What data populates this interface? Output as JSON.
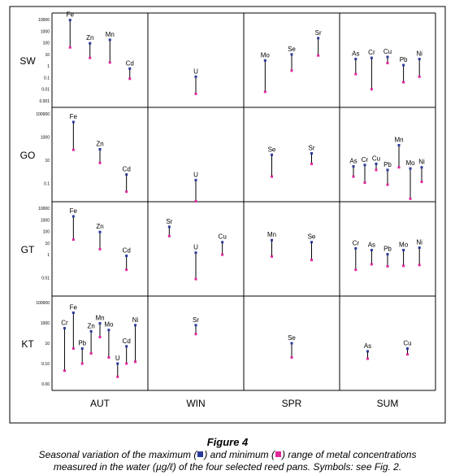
{
  "caption": {
    "title": "Figure 4",
    "line1_pre": "Seasonal variation of the maximum (",
    "line1_mid": ") and minimum (",
    "line1_post": ") range of metal concentrations",
    "line2": "measured in the water (µg/ℓ) of the four selected reed pans. Symbols: see Fig. 2."
  },
  "colors": {
    "max_marker": "#2b3a9a",
    "min_marker": "#e0279b",
    "line": "#000000"
  },
  "chart_data": {
    "type": "range",
    "columns": [
      "AUT",
      "WIN",
      "SPR",
      "SUM"
    ],
    "rows": [
      {
        "label": "SW",
        "ticks": [
          "10000",
          "1000",
          "100",
          "10",
          "1",
          "0.1",
          "0.01",
          "0.001"
        ],
        "ymin": 0.001,
        "ymax": 10000,
        "series": [
          {
            "name": "Fe",
            "col": 0,
            "max": 9000,
            "min": 40
          },
          {
            "name": "Zn",
            "col": 0,
            "max": 90,
            "min": 5
          },
          {
            "name": "Mn",
            "col": 0,
            "max": 180,
            "min": 2
          },
          {
            "name": "Cd",
            "col": 0,
            "max": 0.6,
            "min": 0.08
          },
          {
            "name": "U",
            "col": 1,
            "max": 0.12,
            "min": 0.004
          },
          {
            "name": "Mo",
            "col": 2,
            "max": 3,
            "min": 0.006
          },
          {
            "name": "Se",
            "col": 2,
            "max": 10,
            "min": 0.4
          },
          {
            "name": "Sr",
            "col": 2,
            "max": 250,
            "min": 8
          },
          {
            "name": "As",
            "col": 3,
            "max": 4,
            "min": 0.2
          },
          {
            "name": "Cr",
            "col": 3,
            "max": 5,
            "min": 0.01
          },
          {
            "name": "Cu",
            "col": 3,
            "max": 6,
            "min": 1.8
          },
          {
            "name": "Pb",
            "col": 3,
            "max": 1.2,
            "min": 0.04
          },
          {
            "name": "Ni",
            "col": 3,
            "max": 4,
            "min": 0.12
          }
        ]
      },
      {
        "label": "GO",
        "ticks": [
          "100000",
          "1000",
          "10",
          "0.1"
        ],
        "ymin": 0.01,
        "ymax": 100000,
        "series": [
          {
            "name": "Fe",
            "col": 0,
            "max": 20000,
            "min": 80
          },
          {
            "name": "Zn",
            "col": 0,
            "max": 90,
            "min": 6
          },
          {
            "name": "Cd",
            "col": 0,
            "max": 0.6,
            "min": 0.02
          },
          {
            "name": "U",
            "col": 1,
            "max": 0.2,
            "min": 0.003
          },
          {
            "name": "Se",
            "col": 2,
            "max": 30,
            "min": 0.4
          },
          {
            "name": "Sr",
            "col": 2,
            "max": 40,
            "min": 5
          },
          {
            "name": "As",
            "col": 3,
            "max": 3,
            "min": 0.4
          },
          {
            "name": "Cr",
            "col": 3,
            "max": 4,
            "min": 0.12
          },
          {
            "name": "Cu",
            "col": 3,
            "max": 5,
            "min": 1.5
          },
          {
            "name": "Pb",
            "col": 3,
            "max": 1.5,
            "min": 0.08
          },
          {
            "name": "Mn",
            "col": 3,
            "max": 200,
            "min": 2.5
          },
          {
            "name": "Mo",
            "col": 3,
            "max": 2,
            "min": 0.005
          },
          {
            "name": "Ni",
            "col": 3,
            "max": 2.5,
            "min": 0.14
          }
        ]
      },
      {
        "label": "GT",
        "ticks": [
          "10000",
          "1000",
          "100",
          "10",
          "1",
          "0.01"
        ],
        "ymin": 0.001,
        "ymax": 10000,
        "series": [
          {
            "name": "Fe",
            "col": 0,
            "max": 2000,
            "min": 20
          },
          {
            "name": "Zn",
            "col": 0,
            "max": 90,
            "min": 3
          },
          {
            "name": "Cd",
            "col": 0,
            "max": 0.8,
            "min": 0.05
          },
          {
            "name": "Sr",
            "col": 1,
            "max": 250,
            "min": 40
          },
          {
            "name": "U",
            "col": 1,
            "max": 1.5,
            "min": 0.008
          },
          {
            "name": "Cu",
            "col": 1,
            "max": 12,
            "min": 1
          },
          {
            "name": "Mn",
            "col": 2,
            "max": 18,
            "min": 0.7
          },
          {
            "name": "Se",
            "col": 2,
            "max": 12,
            "min": 0.35
          },
          {
            "name": "Cr",
            "col": 3,
            "max": 3.5,
            "min": 0.05
          },
          {
            "name": "As",
            "col": 3,
            "max": 2.5,
            "min": 0.15
          },
          {
            "name": "Pb",
            "col": 3,
            "max": 1.1,
            "min": 0.1
          },
          {
            "name": "Mo",
            "col": 3,
            "max": 2.5,
            "min": 0.11
          },
          {
            "name": "Ni",
            "col": 3,
            "max": 4,
            "min": 0.13
          }
        ]
      },
      {
        "label": "KT",
        "ticks": [
          "100000",
          "1000",
          "10",
          "0.10",
          "0.00"
        ],
        "ymin": 0.001,
        "ymax": 100000,
        "series": [
          {
            "name": "Cr",
            "col": 0,
            "max": 300,
            "min": 0.02
          },
          {
            "name": "Fe",
            "col": 0,
            "max": 10000,
            "min": 3
          },
          {
            "name": "Pb",
            "col": 0,
            "max": 3,
            "min": 0.1
          },
          {
            "name": "Zn",
            "col": 0,
            "max": 150,
            "min": 1
          },
          {
            "name": "Mn",
            "col": 0,
            "max": 900,
            "min": 40
          },
          {
            "name": "Mo",
            "col": 0,
            "max": 200,
            "min": 0.4
          },
          {
            "name": "U",
            "col": 0,
            "max": 0.1,
            "min": 0.005
          },
          {
            "name": "Cd",
            "col": 0,
            "max": 5,
            "min": 0.1
          },
          {
            "name": "Ni",
            "col": 0,
            "max": 600,
            "min": 0.15
          },
          {
            "name": "Sr",
            "col": 1,
            "max": 600,
            "min": 80
          },
          {
            "name": "Se",
            "col": 2,
            "max": 10,
            "min": 0.4
          },
          {
            "name": "As",
            "col": 3,
            "max": 1.6,
            "min": 0.3
          },
          {
            "name": "Cu",
            "col": 3,
            "max": 3,
            "min": 0.8
          }
        ]
      }
    ]
  }
}
